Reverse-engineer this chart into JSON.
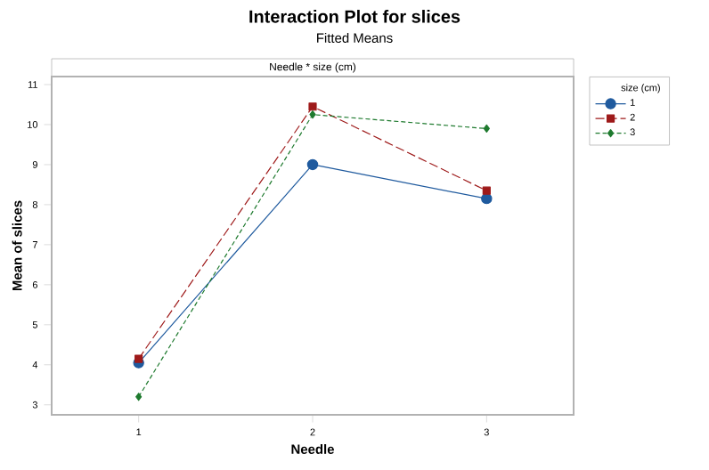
{
  "chart_data": {
    "type": "line",
    "title": "Interaction Plot for slices",
    "subtitle": "Fitted Means",
    "annotations": [
      "Needle * size (cm)"
    ],
    "xlabel": "Needle",
    "ylabel": "Mean of slices",
    "legend_title": "size (cm)",
    "categories": [
      "1",
      "2",
      "3"
    ],
    "series": [
      {
        "name": "1",
        "color": "#1f5a9e",
        "values": [
          4.05,
          9.0,
          8.15
        ],
        "marker": "circle",
        "line_style": "solid"
      },
      {
        "name": "2",
        "color": "#9e1a1a",
        "values": [
          4.15,
          10.45,
          8.35
        ],
        "marker": "square",
        "line_style": "dashed"
      },
      {
        "name": "3",
        "color": "#1e7a2e",
        "values": [
          3.2,
          10.25,
          9.9
        ],
        "marker": "diamond",
        "line_style": "dotted"
      }
    ],
    "ylim": [
      2.75,
      11.2
    ],
    "yticks": [
      3,
      4,
      5,
      6,
      7,
      8,
      9,
      10,
      11
    ],
    "grid": false,
    "legend": "top right"
  }
}
